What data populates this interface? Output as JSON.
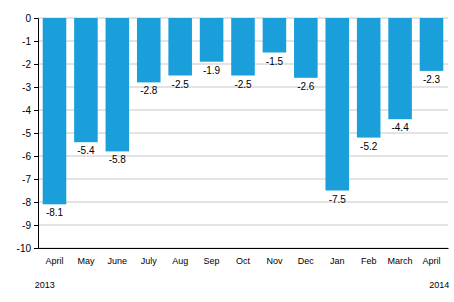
{
  "chart_data": {
    "type": "bar",
    "categories": [
      "April",
      "May",
      "June",
      "July",
      "Aug",
      "Sep",
      "Oct",
      "Nov",
      "Dec",
      "Jan",
      "Feb",
      "March",
      "April"
    ],
    "values": [
      -8.1,
      -5.4,
      -5.8,
      -2.8,
      -2.5,
      -1.9,
      -2.5,
      -1.5,
      -2.6,
      -7.5,
      -5.2,
      -4.4,
      -2.3
    ],
    "color": "#1a9fdb",
    "ylim": [
      -10,
      0
    ],
    "yticks": [
      0,
      -1,
      -2,
      -3,
      -4,
      -5,
      -6,
      -7,
      -8,
      -9,
      -10
    ],
    "grid": true,
    "data_labels": true,
    "annotations": [
      "2013",
      "2014"
    ]
  }
}
